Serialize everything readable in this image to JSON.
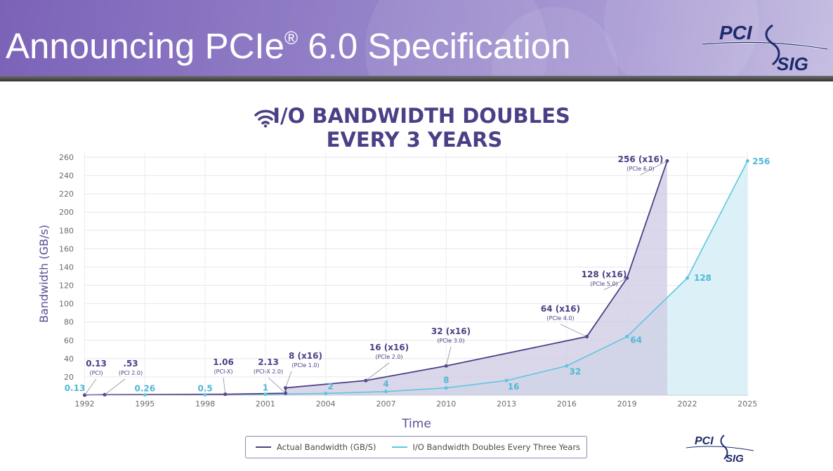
{
  "slide": {
    "title_main": "Announcing PCIe",
    "title_reg": "®",
    "title_rest": " 6.0 Specification",
    "logo_top_line1": "PCI",
    "logo_top_line2": "SIG",
    "logo_bottom_line1": "PCI",
    "logo_bottom_line2": "SIG"
  },
  "chart_data": {
    "type": "line",
    "title": "I/O BANDWIDTH DOUBLES EVERY 3 YEARS",
    "title_lines": [
      "I/O BANDWIDTH DOUBLES",
      "EVERY 3 YEARS"
    ],
    "xlabel": "Time",
    "ylabel": "Bandwidth (GB/s)",
    "xlim": [
      1992,
      2025
    ],
    "ylim": [
      0,
      260
    ],
    "xticks": [
      "1992",
      "1995",
      "1998",
      "2001",
      "2004",
      "2007",
      "2010",
      "2013",
      "2016",
      "2019",
      "2022",
      "2025"
    ],
    "yticks": [
      "20",
      "40",
      "60",
      "80",
      "100",
      "120",
      "140",
      "160",
      "180",
      "200",
      "220",
      "240",
      "260"
    ],
    "grid": true,
    "legend_position": "bottom-center",
    "series": [
      {
        "name": "Actual Bandwidth (GB/S)",
        "color": "#4d3f86",
        "fill": "#cfc9e3",
        "points": [
          {
            "x": 1992,
            "y": 0.13,
            "label": "0.13",
            "sublabel": "(PCI)"
          },
          {
            "x": 1993,
            "y": 0.53,
            "label": ".53",
            "sublabel": "(PCI 2.0)"
          },
          {
            "x": 1999,
            "y": 1.06,
            "label": "1.06",
            "sublabel": "(PCI-X)"
          },
          {
            "x": 2002,
            "y": 2.13,
            "label": "2.13",
            "sublabel": "(PCI-X 2.0)"
          },
          {
            "x": 2002,
            "y": 8,
            "label": "8 (x16)",
            "sublabel": "(PCIe 1.0)"
          },
          {
            "x": 2006,
            "y": 16,
            "label": "16 (x16)",
            "sublabel": "(PCIe 2.0)"
          },
          {
            "x": 2010,
            "y": 32,
            "label": "32 (x16)",
            "sublabel": "(PCIe 3.0)"
          },
          {
            "x": 2017,
            "y": 64,
            "label": "64 (x16)",
            "sublabel": "(PCIe 4.0)"
          },
          {
            "x": 2019,
            "y": 128,
            "label": "128 (x16)",
            "sublabel": "(PCIe 5.0)"
          },
          {
            "x": 2021,
            "y": 256,
            "label": "256 (x16)",
            "sublabel": "(PCIe 6.0)"
          }
        ]
      },
      {
        "name": "I/O Bandwidth Doubles Every Three Years",
        "color": "#5ec6e0",
        "fill": "#d7f0f6",
        "points": [
          {
            "x": 1992,
            "y": 0.13,
            "label": "0.13"
          },
          {
            "x": 1995,
            "y": 0.26,
            "label": "0.26"
          },
          {
            "x": 1998,
            "y": 0.5,
            "label": "0.5"
          },
          {
            "x": 2001,
            "y": 1,
            "label": "1"
          },
          {
            "x": 2004,
            "y": 2,
            "label": "2"
          },
          {
            "x": 2007,
            "y": 4,
            "label": "4"
          },
          {
            "x": 2010,
            "y": 8,
            "label": "8"
          },
          {
            "x": 2013,
            "y": 16,
            "label": "16"
          },
          {
            "x": 2016,
            "y": 32,
            "label": "32"
          },
          {
            "x": 2019,
            "y": 64,
            "label": "64"
          },
          {
            "x": 2022,
            "y": 128,
            "label": "128"
          },
          {
            "x": 2025,
            "y": 256,
            "label": "256"
          }
        ]
      }
    ]
  }
}
